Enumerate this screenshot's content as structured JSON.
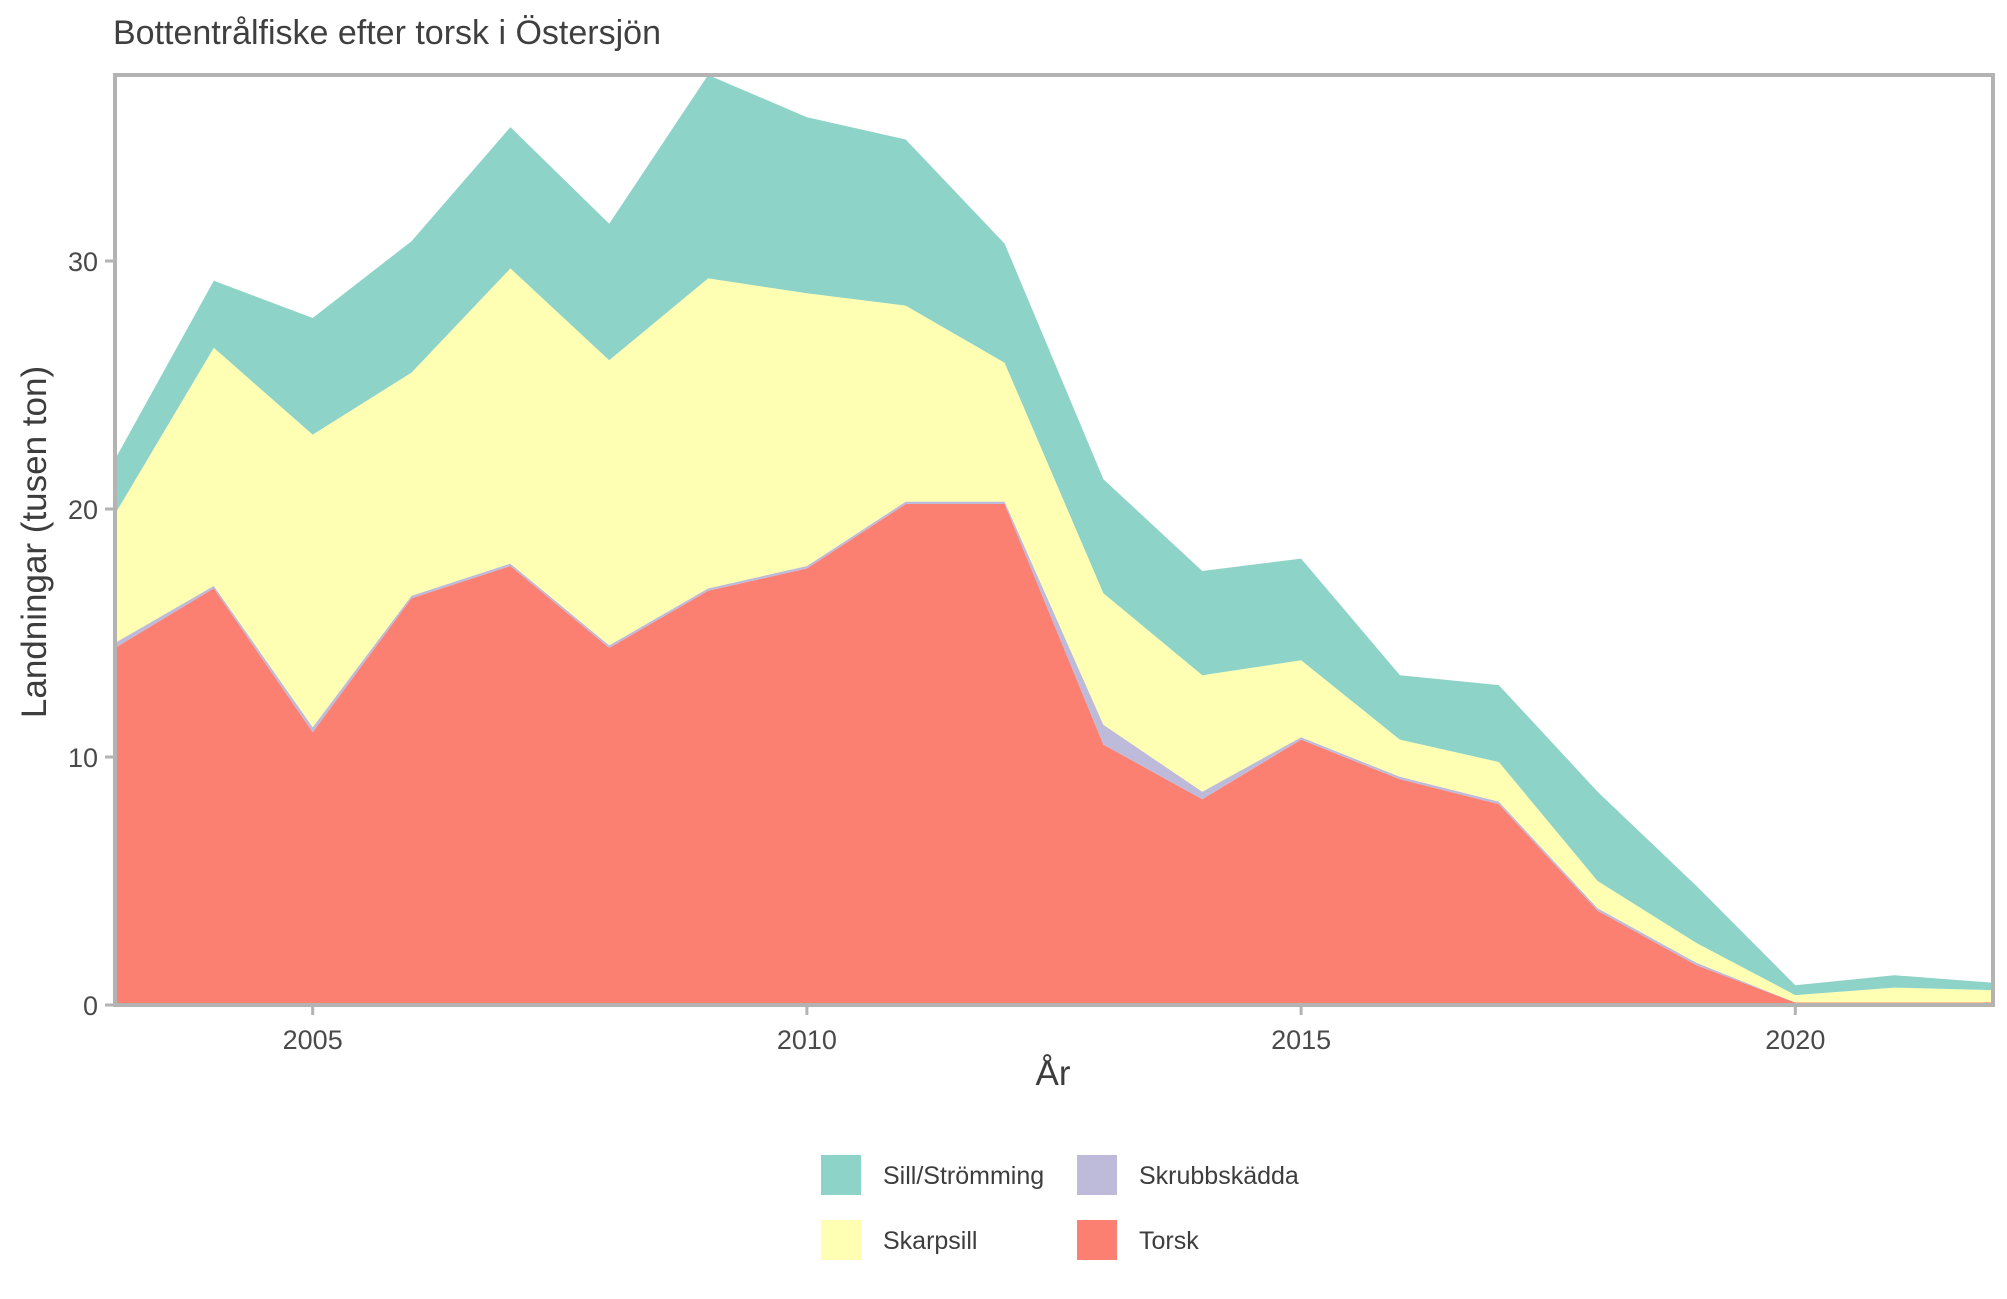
{
  "chart_data": {
    "type": "area",
    "stacked": true,
    "title": "Bottentrålfiske efter torsk i Östersjön",
    "xlabel": "År",
    "ylabel": "Landningar (tusen ton)",
    "xlim": [
      2003,
      2022
    ],
    "ylim": [
      0,
      37.5
    ],
    "x_ticks": [
      2005,
      2010,
      2015,
      2020
    ],
    "y_ticks": [
      0,
      10,
      20,
      30
    ],
    "grid": false,
    "legend_position": "bottom",
    "x": [
      2003,
      2004,
      2005,
      2006,
      2007,
      2008,
      2009,
      2010,
      2011,
      2012,
      2013,
      2014,
      2015,
      2016,
      2017,
      2018,
      2019,
      2020,
      2021,
      2022
    ],
    "series": [
      {
        "name": "Torsk",
        "color": "#FB8072",
        "values": [
          14.4,
          16.8,
          11.0,
          16.4,
          17.7,
          14.4,
          16.7,
          17.6,
          20.2,
          20.2,
          10.5,
          8.3,
          10.7,
          9.1,
          8.1,
          3.8,
          1.6,
          0.1,
          0.1,
          0.1
        ]
      },
      {
        "name": "Skrubbskädda",
        "color": "#BEBADA",
        "values": [
          0.2,
          0.1,
          0.2,
          0.1,
          0.1,
          0.1,
          0.1,
          0.1,
          0.1,
          0.1,
          0.8,
          0.3,
          0.1,
          0.1,
          0.1,
          0.1,
          0.1,
          0.0,
          0.0,
          0.0
        ]
      },
      {
        "name": "Skarpsill",
        "color": "#FFFFB3",
        "values": [
          5.2,
          9.6,
          11.8,
          9.0,
          11.9,
          11.5,
          12.5,
          11.0,
          7.9,
          5.6,
          5.3,
          4.7,
          3.1,
          1.5,
          1.6,
          1.1,
          0.8,
          0.3,
          0.6,
          0.5
        ]
      },
      {
        "name": "Sill/Strömming",
        "color": "#8DD3C7",
        "values": [
          2.2,
          2.7,
          4.7,
          5.3,
          5.7,
          5.5,
          8.2,
          7.1,
          6.7,
          4.8,
          4.6,
          4.2,
          4.1,
          2.6,
          3.1,
          3.6,
          2.3,
          0.4,
          0.5,
          0.3
        ]
      }
    ],
    "legend": [
      {
        "name": "Sill/Strömming",
        "color": "#8DD3C7"
      },
      {
        "name": "Skrubbskädda",
        "color": "#BEBADA"
      },
      {
        "name": "Skarpsill",
        "color": "#FFFFB3"
      },
      {
        "name": "Torsk",
        "color": "#FB8072"
      }
    ],
    "panel_border_color": "#b3b3b3"
  }
}
